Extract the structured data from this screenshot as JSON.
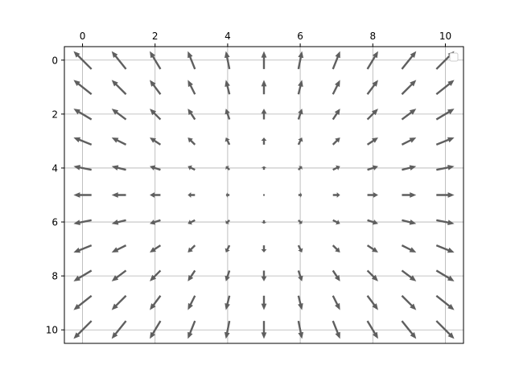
{
  "chart_data": {
    "type": "quiver",
    "title": "",
    "xlabel": "",
    "ylabel": "",
    "xlim": [
      -0.5,
      10.5
    ],
    "ylim": [
      10.5,
      -0.5
    ],
    "x_axis_position": "top",
    "y_axis_inverted": true,
    "xticks": [
      "0",
      "2",
      "4",
      "6",
      "8",
      "10"
    ],
    "yticks": [
      "0",
      "2",
      "4",
      "6",
      "8",
      "10"
    ],
    "grid": true,
    "legend": {
      "position": "upper-right",
      "entries": []
    },
    "field": {
      "description_formula": "u = x - 5, v = y - 5",
      "center": [
        5,
        5
      ],
      "x": [
        0,
        1,
        2,
        3,
        4,
        5,
        6,
        7,
        8,
        9,
        10
      ],
      "y": [
        0,
        1,
        2,
        3,
        4,
        5,
        6,
        7,
        8,
        9,
        10
      ]
    },
    "colors": {
      "arrow": "#5f5f5f",
      "grid": "#b0b0b0",
      "axes": "#000000"
    }
  }
}
